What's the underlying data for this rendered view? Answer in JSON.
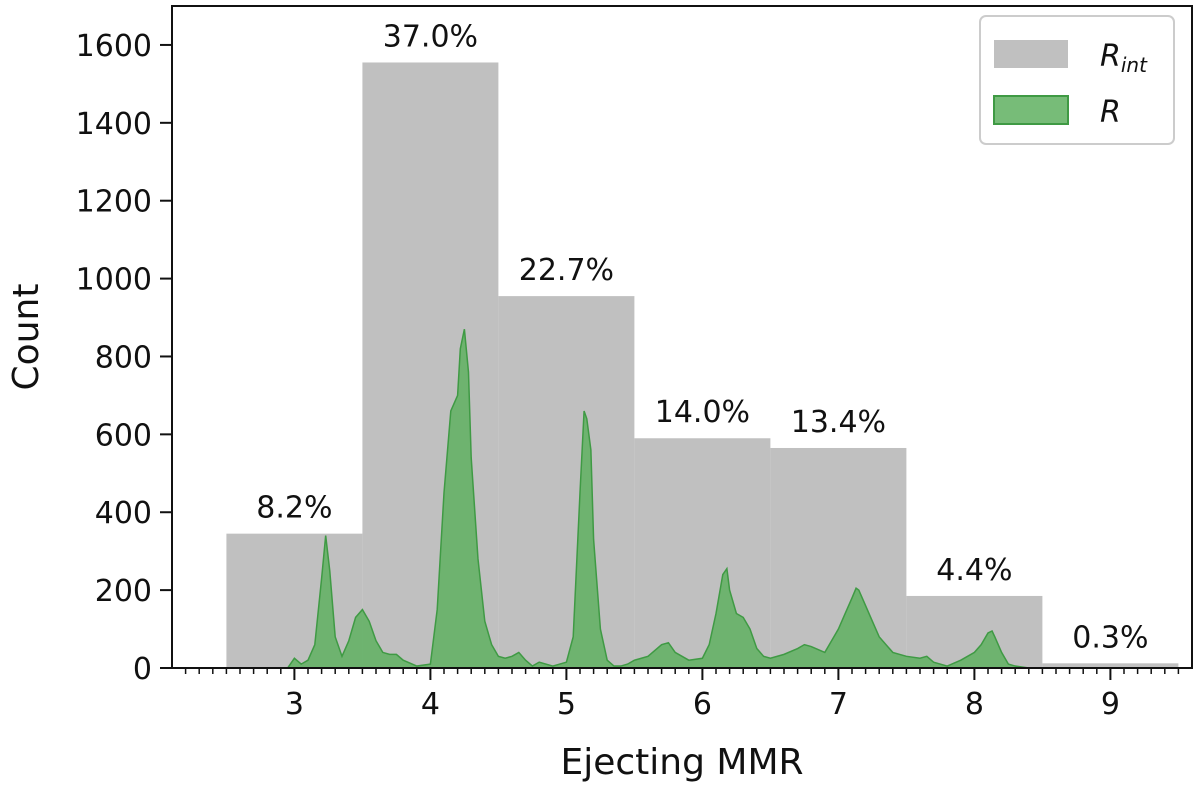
{
  "chart_data": {
    "type": "bar",
    "xlabel": "Ejecting MMR",
    "ylabel": "Count",
    "xlim": [
      2.1,
      9.6
    ],
    "ylim": [
      0,
      1700
    ],
    "xticks": [
      3,
      4,
      5,
      6,
      7,
      8,
      9
    ],
    "yticks": [
      0,
      200,
      400,
      600,
      800,
      1000,
      1200,
      1400,
      1600
    ],
    "grid": false,
    "legend_position": "top-right",
    "colors": {
      "r_int": "#c0c0c0",
      "r_fill": "#5fb060",
      "r_edge": "#3f9a44"
    },
    "series": [
      {
        "name_main": "R",
        "name_sub": "int",
        "kind": "histogram",
        "bins": [
          {
            "x": 3,
            "value": 345,
            "label": "8.2%"
          },
          {
            "x": 4,
            "value": 1555,
            "label": "37.0%"
          },
          {
            "x": 5,
            "value": 955,
            "label": "22.7%"
          },
          {
            "x": 6,
            "value": 590,
            "label": "14.0%"
          },
          {
            "x": 7,
            "value": 565,
            "label": "13.4%"
          },
          {
            "x": 8,
            "value": 185,
            "label": "4.4%"
          },
          {
            "x": 9,
            "value": 12,
            "label": "0.3%"
          }
        ]
      },
      {
        "name_main": "R",
        "name_sub": "",
        "kind": "area",
        "x": [
          2.5,
          2.95,
          3.0,
          3.05,
          3.1,
          3.15,
          3.2,
          3.23,
          3.26,
          3.3,
          3.35,
          3.4,
          3.45,
          3.5,
          3.55,
          3.6,
          3.65,
          3.7,
          3.75,
          3.8,
          3.9,
          4.0,
          4.05,
          4.1,
          4.15,
          4.2,
          4.22,
          4.25,
          4.28,
          4.3,
          4.35,
          4.4,
          4.45,
          4.5,
          4.55,
          4.6,
          4.65,
          4.7,
          4.75,
          4.8,
          4.9,
          5.0,
          5.05,
          5.1,
          5.13,
          5.15,
          5.18,
          5.2,
          5.25,
          5.3,
          5.35,
          5.4,
          5.45,
          5.5,
          5.6,
          5.7,
          5.75,
          5.8,
          5.9,
          6.0,
          6.05,
          6.1,
          6.15,
          6.18,
          6.2,
          6.25,
          6.3,
          6.35,
          6.4,
          6.45,
          6.5,
          6.6,
          6.7,
          6.75,
          6.8,
          6.9,
          7.0,
          7.05,
          7.1,
          7.13,
          7.15,
          7.2,
          7.25,
          7.3,
          7.4,
          7.5,
          7.6,
          7.65,
          7.7,
          7.8,
          7.9,
          8.0,
          8.05,
          8.1,
          8.13,
          8.15,
          8.2,
          8.25,
          8.3,
          8.4,
          8.5,
          9.0,
          9.5
        ],
        "y": [
          0,
          0,
          25,
          10,
          20,
          60,
          230,
          340,
          250,
          80,
          30,
          70,
          130,
          150,
          120,
          70,
          40,
          35,
          35,
          20,
          5,
          10,
          150,
          450,
          660,
          700,
          820,
          870,
          760,
          540,
          280,
          120,
          60,
          30,
          25,
          30,
          40,
          20,
          5,
          15,
          5,
          15,
          80,
          450,
          660,
          640,
          560,
          330,
          100,
          20,
          5,
          5,
          10,
          20,
          30,
          60,
          65,
          40,
          20,
          25,
          60,
          140,
          240,
          255,
          200,
          140,
          130,
          100,
          50,
          30,
          25,
          35,
          50,
          60,
          55,
          40,
          100,
          140,
          180,
          205,
          200,
          160,
          120,
          80,
          40,
          30,
          25,
          30,
          15,
          5,
          20,
          40,
          60,
          90,
          95,
          80,
          40,
          10,
          5,
          0,
          0,
          0,
          0
        ]
      }
    ]
  }
}
